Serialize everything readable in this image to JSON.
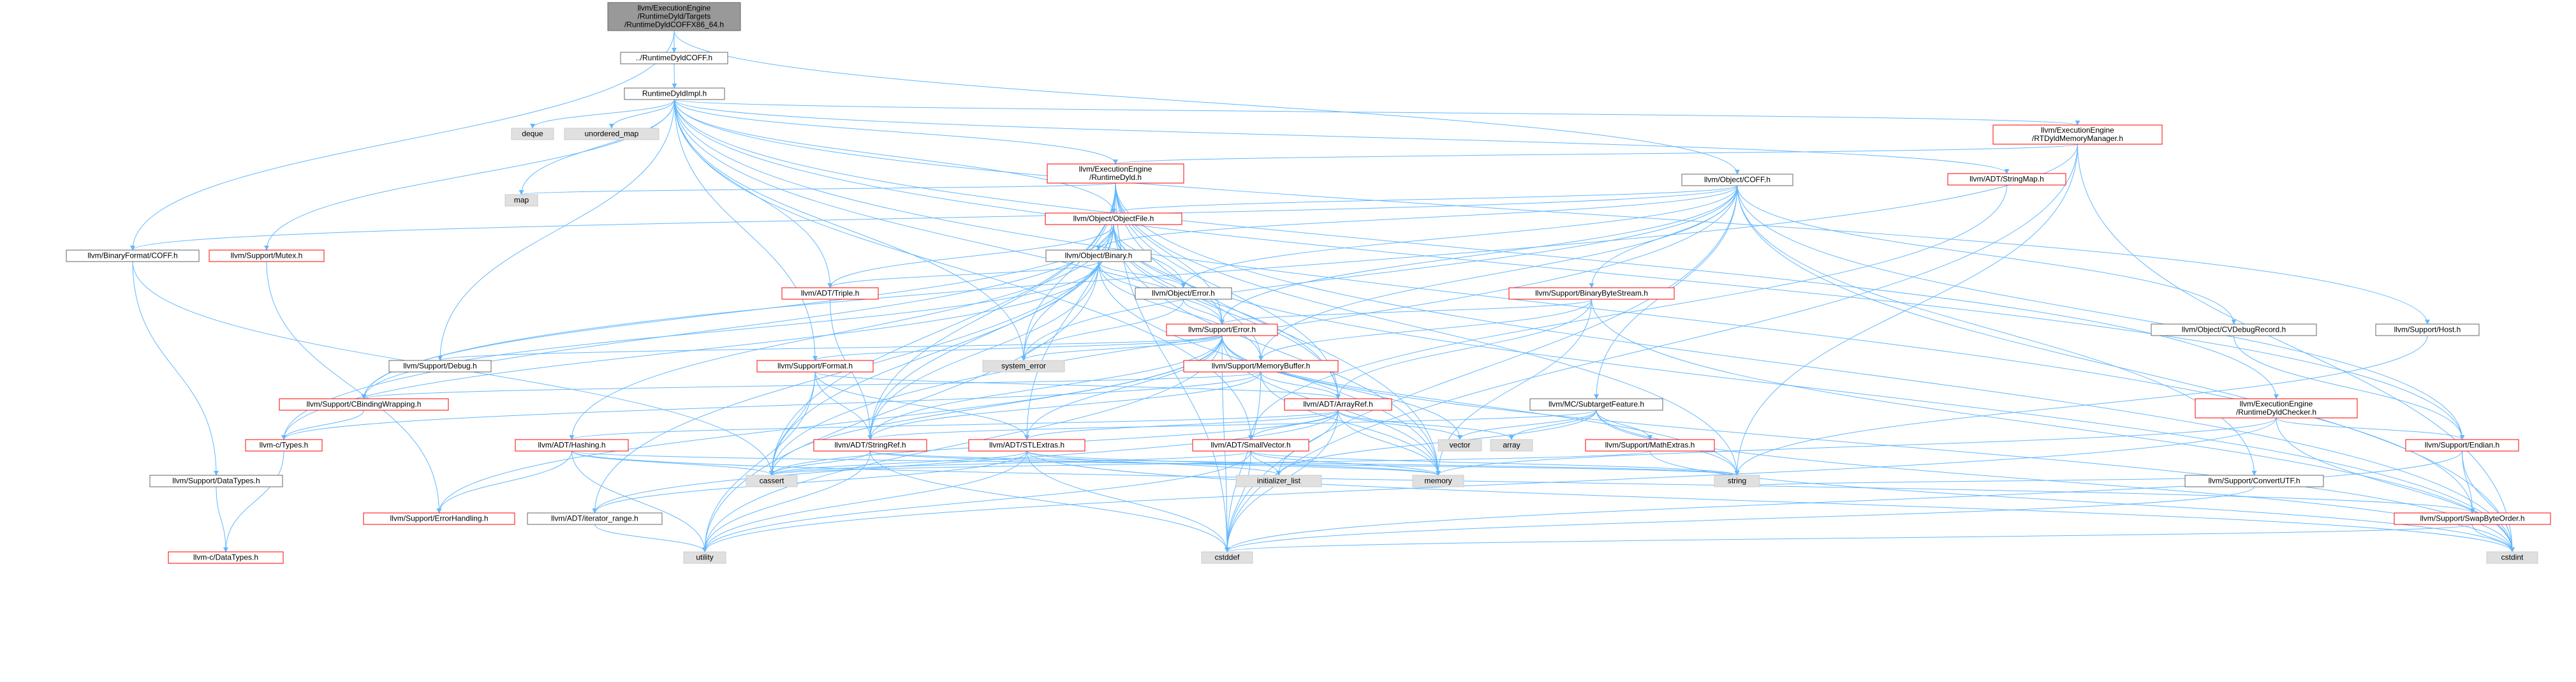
{
  "colors": {
    "edge": "#63b8ff",
    "node_fill": "#ffffff",
    "node_border_default": "#666666",
    "node_border_red": "#ff0000",
    "node_border_gray": "#cccccc",
    "root_fill": "#999999",
    "system_fill": "#e0e0e0",
    "text": "#000000"
  },
  "nodes": {
    "root": [
      "llvm/ExecutionEngine",
      "/RuntimeDyld/Targets",
      "/RuntimeDyldCOFFX86_64.h"
    ],
    "rdcoff": [
      "../RuntimeDyldCOFF.h"
    ],
    "rdimpl": [
      "RuntimeDyldImpl.h"
    ],
    "deque": [
      "deque"
    ],
    "unordered_map": [
      "unordered_map"
    ],
    "rtdyldmm": [
      "llvm/ExecutionEngine",
      "/RTDyldMemoryManager.h"
    ],
    "runtimedyld": [
      "llvm/ExecutionEngine",
      "/RuntimeDyld.h"
    ],
    "map": [
      "map"
    ],
    "objcoff": [
      "llvm/Object/COFF.h"
    ],
    "stringmap": [
      "llvm/ADT/StringMap.h"
    ],
    "binfmtcoff": [
      "llvm/BinaryFormat/COFF.h"
    ],
    "mutex": [
      "llvm/Support/Mutex.h"
    ],
    "objfile": [
      "llvm/Object/ObjectFile.h"
    ],
    "binary": [
      "llvm/Object/Binary.h"
    ],
    "triple": [
      "llvm/ADT/Triple.h"
    ],
    "objerror": [
      "llvm/Object/Error.h"
    ],
    "binbytestream": [
      "llvm/Support/BinaryByteStream.h"
    ],
    "cvdebug": [
      "llvm/Object/CVDebugRecord.h"
    ],
    "host": [
      "llvm/Support/Host.h"
    ],
    "superror": [
      "llvm/Support/Error.h"
    ],
    "debug": [
      "llvm/Support/Debug.h"
    ],
    "system_error": [
      "system_error"
    ],
    "format": [
      "llvm/Support/Format.h"
    ],
    "memorybuffer": [
      "llvm/Support/MemoryBuffer.h"
    ],
    "cbinding": [
      "llvm/Support/CBindingWrapping.h"
    ],
    "arrayref": [
      "llvm/ADT/ArrayRef.h"
    ],
    "subtarget": [
      "llvm/MC/SubtargetFeature.h"
    ],
    "rdchecker": [
      "llvm/ExecutionEngine",
      "/RuntimeDyldChecker.h"
    ],
    "ctypes": [
      "llvm-c/Types.h"
    ],
    "hashing": [
      "llvm/ADT/Hashing.h"
    ],
    "stringref": [
      "llvm/ADT/StringRef.h"
    ],
    "stlextras": [
      "llvm/ADT/STLExtras.h"
    ],
    "smallvector": [
      "llvm/ADT/SmallVector.h"
    ],
    "vector": [
      "vector"
    ],
    "array": [
      "array"
    ],
    "mathextras": [
      "llvm/Support/MathExtras.h"
    ],
    "convertutf": [
      "llvm/Support/ConvertUTF.h"
    ],
    "endian": [
      "llvm/Support/Endian.h"
    ],
    "datatypes": [
      "llvm/Support/DataTypes.h"
    ],
    "errorhandling": [
      "llvm/Support/ErrorHandling.h"
    ],
    "iterator_range": [
      "llvm/ADT/iterator_range.h"
    ],
    "cassert": [
      "cassert"
    ],
    "initializer_list": [
      "initializer_list"
    ],
    "memory": [
      "memory"
    ],
    "string": [
      "string"
    ],
    "swapbyteorder": [
      "llvm/Support/SwapByteOrder.h"
    ],
    "ctypesdata": [
      "llvm-c/DataTypes.h"
    ],
    "utility": [
      "utility"
    ],
    "cstddef": [
      "cstddef"
    ],
    "cstdint": [
      "cstdint"
    ]
  }
}
